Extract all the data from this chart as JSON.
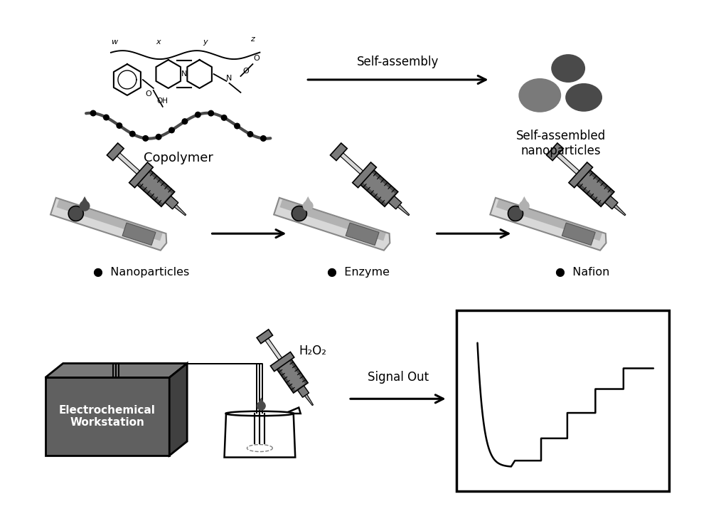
{
  "bg_color": "#ffffff",
  "dark_gray": "#4a4a4a",
  "medium_gray": "#7a7a7a",
  "light_gray": "#b0b0b0",
  "lighter_gray": "#d8d8d8",
  "box_gray": "#606060",
  "box_top": "#787878",
  "box_right": "#404040",
  "labels": {
    "copolymer": "Copolymer",
    "self_assembly": "Self-assembly",
    "nanoparticles_label": "Self-assembled\nnanoparticles",
    "nanoparticles": "Nanoparticles",
    "enzyme": "Enzyme",
    "nafion": "Nafion",
    "h2o2": "H₂O₂",
    "signal_out": "Signal Out",
    "workstation": "Electrochemical\nWorkstation"
  }
}
